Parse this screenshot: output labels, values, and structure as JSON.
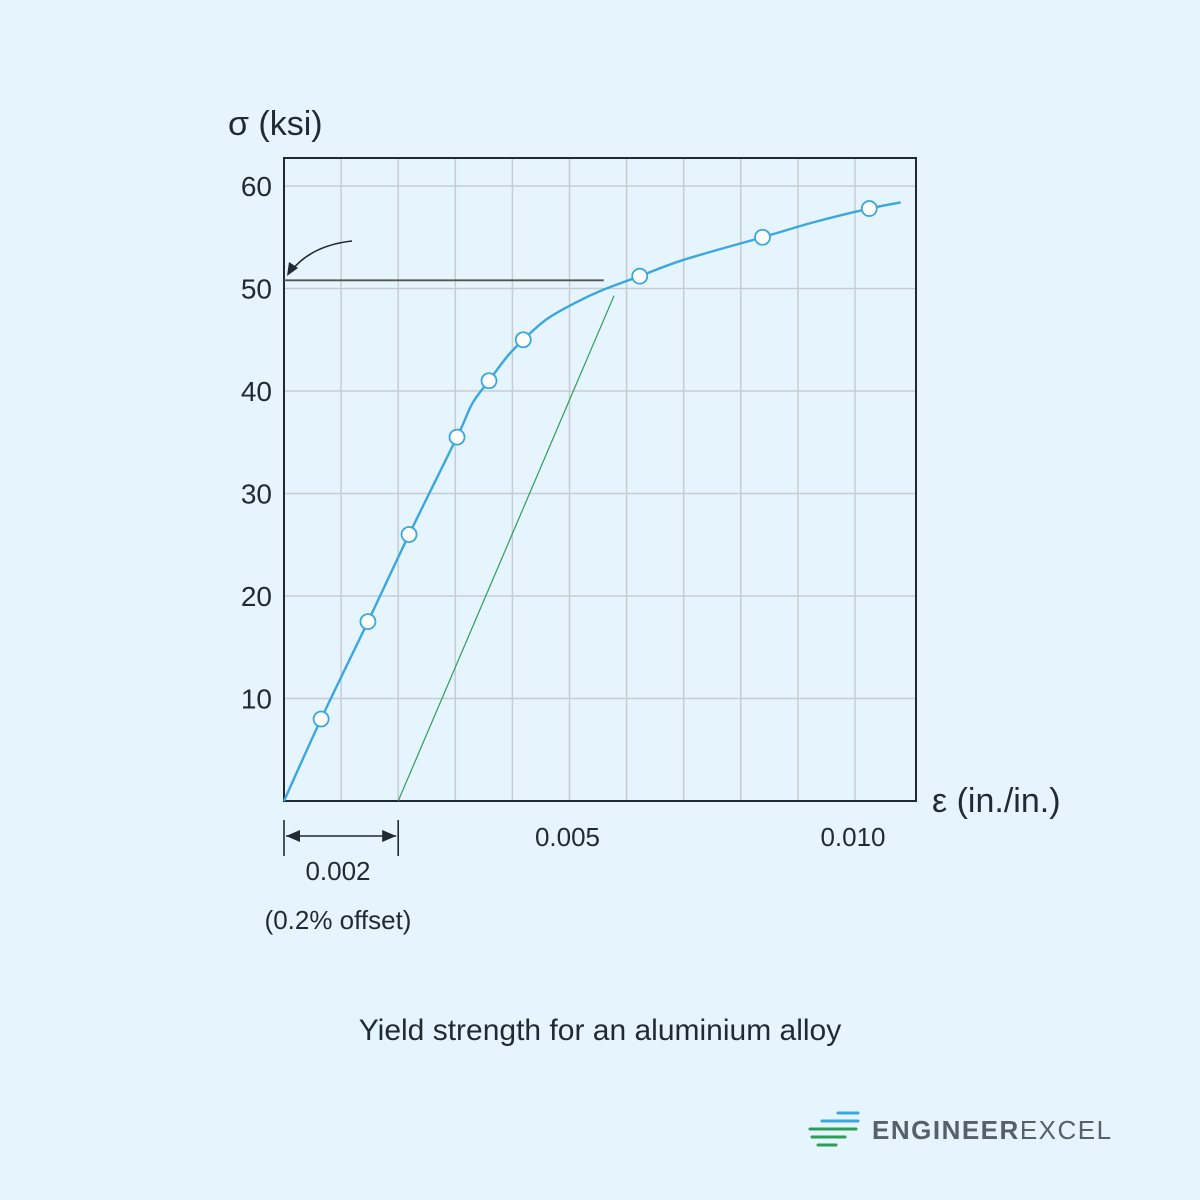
{
  "chart_data": {
    "type": "line",
    "ylabel": "σ (ksi)",
    "xlabel": "ε (in./in.)",
    "xlim": [
      0,
      0.011
    ],
    "ylim": [
      0,
      60
    ],
    "y_ticks": [
      10,
      20,
      30,
      40,
      50,
      60
    ],
    "y_tick_labels": [
      "10",
      "20",
      "30",
      "40",
      "50",
      "60"
    ],
    "x_tick_labels": [
      {
        "x": 0.005,
        "label": "0.005"
      },
      {
        "x": 0.01,
        "label": "0.010"
      }
    ],
    "x_gridlines": [
      0.001,
      0.002,
      0.003,
      0.004,
      0.005,
      0.006,
      0.007,
      0.008,
      0.009,
      0.01
    ],
    "y_gridlines": [
      10,
      20,
      30,
      40,
      50,
      60
    ],
    "grid": true,
    "series": [
      {
        "color": "#3aa7df",
        "marker": "open-circle",
        "points": [
          [
            0.00065,
            8.0
          ],
          [
            0.00147,
            17.5
          ],
          [
            0.00219,
            26.0
          ],
          [
            0.00303,
            35.5
          ],
          [
            0.00359,
            41.0
          ],
          [
            0.00419,
            45.0
          ],
          [
            0.00623,
            51.2
          ],
          [
            0.00838,
            55.0
          ],
          [
            0.01025,
            57.8
          ]
        ],
        "curve": [
          [
            0,
            0
          ],
          [
            0.00065,
            8.0
          ],
          [
            0.00147,
            17.5
          ],
          [
            0.00219,
            26.0
          ],
          [
            0.00303,
            35.5
          ],
          [
            0.0033,
            38.8
          ],
          [
            0.00359,
            41.0
          ],
          [
            0.0039,
            43.3
          ],
          [
            0.00419,
            45.0
          ],
          [
            0.0046,
            47.0
          ],
          [
            0.0051,
            48.6
          ],
          [
            0.0056,
            49.9
          ],
          [
            0.00623,
            51.2
          ],
          [
            0.007,
            52.8
          ],
          [
            0.00838,
            55.0
          ],
          [
            0.0093,
            56.5
          ],
          [
            0.01025,
            57.8
          ],
          [
            0.0108,
            58.4
          ]
        ]
      }
    ],
    "offset_line": {
      "color": "#2e9e57",
      "from": [
        0.002,
        0
      ],
      "to": [
        0.00578,
        49.3
      ]
    },
    "yield_line": {
      "color": "#555555",
      "y": 50.8,
      "x_from": 0,
      "x_to": 0.0056
    },
    "offset_dimension": {
      "from": 0,
      "to": 0.002,
      "label": "0.002",
      "note": "(0.2% offset)"
    }
  },
  "caption": "Yield strength for an aluminium alloy",
  "brand": {
    "name_bold": "ENGINEER",
    "name_light": "EXCEL",
    "colors": {
      "accent_blue": "#3aa7df",
      "accent_green": "#2e9e57",
      "text": "#55606a"
    }
  }
}
